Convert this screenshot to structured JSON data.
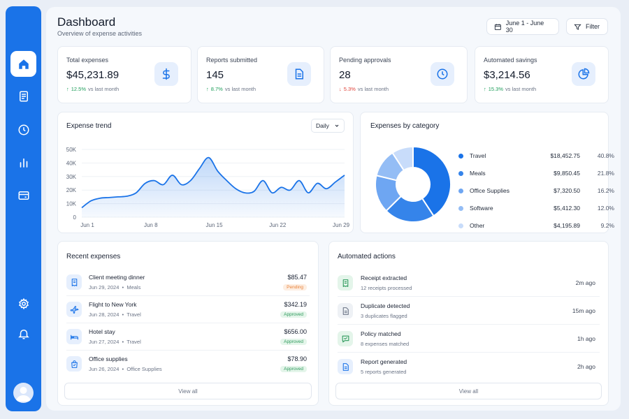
{
  "header": {
    "title": "Dashboard",
    "subtitle": "Overview of expense activities",
    "date_range": "June 1 - June 30",
    "filter_label": "Filter"
  },
  "sidebar": {
    "items": [
      {
        "icon": "home-icon",
        "active": true
      },
      {
        "icon": "document-icon",
        "active": false
      },
      {
        "icon": "clock-icon",
        "active": false
      },
      {
        "icon": "bar-chart-icon",
        "active": false
      },
      {
        "icon": "credit-card-icon",
        "active": false
      },
      {
        "icon": "gear-icon",
        "active": false
      },
      {
        "icon": "bell-icon",
        "active": false
      }
    ]
  },
  "stats": [
    {
      "label": "Total expenses",
      "value": "$45,231.89",
      "delta": "12.5%",
      "direction": "up",
      "suffix": "vs last month",
      "icon": "dollar-icon"
    },
    {
      "label": "Reports submitted",
      "value": "145",
      "delta": "8.7%",
      "direction": "up",
      "suffix": "vs last month",
      "icon": "report-icon"
    },
    {
      "label": "Pending approvals",
      "value": "28",
      "delta": "5.3%",
      "direction": "down",
      "suffix": "vs last month",
      "icon": "clock-icon"
    },
    {
      "label": "Automated savings",
      "value": "$3,214.56",
      "delta": "15.3%",
      "direction": "up",
      "suffix": "vs last month",
      "icon": "pie-icon"
    }
  ],
  "trend": {
    "title": "Expense trend",
    "period": "Daily"
  },
  "category": {
    "title": "Expenses by category"
  },
  "chart_data": [
    {
      "type": "area",
      "title": "Expense trend",
      "x": [
        "Jun 1",
        "Jun 2",
        "Jun 3",
        "Jun 4",
        "Jun 5",
        "Jun 6",
        "Jun 7",
        "Jun 8",
        "Jun 9",
        "Jun 10",
        "Jun 11",
        "Jun 12",
        "Jun 13",
        "Jun 14",
        "Jun 15",
        "Jun 16",
        "Jun 17",
        "Jun 18",
        "Jun 19",
        "Jun 20",
        "Jun 21",
        "Jun 22",
        "Jun 23",
        "Jun 24",
        "Jun 25",
        "Jun 26",
        "Jun 27",
        "Jun 28",
        "Jun 29",
        "Jun 30"
      ],
      "values": [
        7000,
        12000,
        14000,
        14500,
        15000,
        15500,
        18000,
        25000,
        27000,
        24000,
        31000,
        24000,
        27000,
        36000,
        44000,
        34000,
        27000,
        21000,
        18000,
        19000,
        27000,
        18000,
        22000,
        20000,
        27000,
        18000,
        25000,
        21000,
        26000,
        31000
      ],
      "x_ticks": [
        "Jun 1",
        "Jun 8",
        "Jun 15",
        "Jun 22",
        "Jun 29"
      ],
      "y_ticks": [
        "0",
        "10K",
        "20K",
        "30K",
        "40K",
        "50K"
      ],
      "ylim": [
        0,
        50000
      ],
      "grid": true,
      "color": "#1a73e8"
    },
    {
      "type": "pie",
      "title": "Expenses by category",
      "categories": [
        "Travel",
        "Meals",
        "Office Supplies",
        "Software",
        "Other"
      ],
      "amounts": [
        "$18,452.75",
        "$9,850.45",
        "$7,320.50",
        "$5,412.30",
        "$4,195.89"
      ],
      "values": [
        40.8,
        21.8,
        16.2,
        12.0,
        9.2
      ],
      "percent_labels": [
        "40.8%",
        "21.8%",
        "16.2%",
        "12.0%",
        "9.2%"
      ],
      "colors": [
        "#1a73e8",
        "#3584ea",
        "#6ea6f2",
        "#94bdf5",
        "#c8dcfa"
      ],
      "donut": true
    }
  ],
  "recent": {
    "title": "Recent expenses",
    "view_all": "View all",
    "items": [
      {
        "name": "Client meeting dinner",
        "date": "Jun 29, 2024",
        "category": "Meals",
        "amount": "$85.47",
        "status": "Pending",
        "status_type": "pending",
        "icon": "receipt-icon"
      },
      {
        "name": "Flight to New York",
        "date": "Jun 28, 2024",
        "category": "Travel",
        "amount": "$342.19",
        "status": "Approved",
        "status_type": "approved",
        "icon": "plane-icon"
      },
      {
        "name": "Hotel stay",
        "date": "Jun 27, 2024",
        "category": "Travel",
        "amount": "$656.00",
        "status": "Approved",
        "status_type": "approved",
        "icon": "bed-icon"
      },
      {
        "name": "Office supplies",
        "date": "Jun 26, 2024",
        "category": "Office Supplies",
        "amount": "$78.90",
        "status": "Approved",
        "status_type": "approved",
        "icon": "bag-icon"
      }
    ]
  },
  "automated": {
    "title": "Automated actions",
    "view_all": "View all",
    "items": [
      {
        "name": "Receipt extracted",
        "detail": "12 receipts processed",
        "time": "2m ago",
        "icon": "receipt-icon",
        "tone": "green"
      },
      {
        "name": "Duplicate detected",
        "detail": "3 duplicates flagged",
        "time": "15m ago",
        "icon": "document-icon",
        "tone": "grey"
      },
      {
        "name": "Policy matched",
        "detail": "8 expenses matched",
        "time": "1h ago",
        "icon": "message-icon",
        "tone": "green"
      },
      {
        "name": "Report generated",
        "detail": "5 reports generated",
        "time": "2h ago",
        "icon": "report-icon",
        "tone": "blue"
      }
    ]
  }
}
